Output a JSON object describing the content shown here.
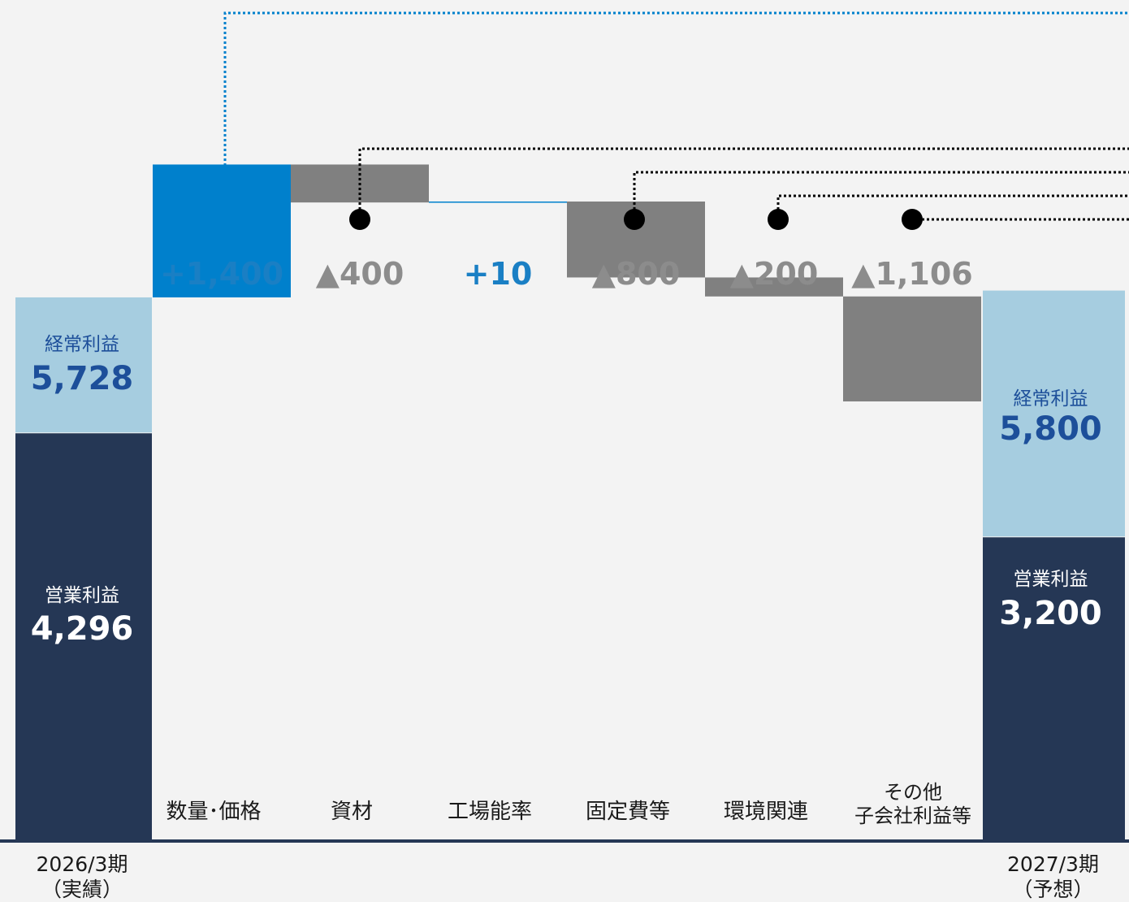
{
  "chart_data": {
    "type": "waterfall",
    "unit": "",
    "start": {
      "period": "2026/3期",
      "sub": "（実績）",
      "operating_label": "営業利益",
      "operating": 4296,
      "operating_text": "4,296",
      "ordinary_label": "経常利益",
      "ordinary": 5728,
      "ordinary_text": "5,728"
    },
    "steps": [
      {
        "category": "数量･価格",
        "value": 1400,
        "label": "+1,400",
        "pointer": "blue"
      },
      {
        "category": "資材",
        "value": -400,
        "label": "▲400",
        "pointer": "black"
      },
      {
        "category": "工場能率",
        "value": 10,
        "label": "+10",
        "pointer": ""
      },
      {
        "category": "固定費等",
        "value": -800,
        "label": "▲800",
        "pointer": "black"
      },
      {
        "category": "環境関連",
        "value": -200,
        "label": "▲200",
        "pointer": "black"
      },
      {
        "category": "その他\n子会社利益等",
        "value": -1106,
        "label": "▲1,106",
        "pointer": "black"
      }
    ],
    "end": {
      "period": "2027/3期",
      "sub": "（予想）",
      "operating_label": "営業利益",
      "operating": 3200,
      "operating_text": "3,200",
      "ordinary_label": "経常利益",
      "ordinary": 5800,
      "ordinary_text": "5,800"
    },
    "colors": {
      "operating": "#253755",
      "ordinary": "#a6cde0",
      "increase": "#0080cc",
      "decrease": "#808080",
      "increase_text": "#1a7fc4",
      "decrease_text": "#8c8c8c",
      "ordinary_text": "#1d4f9a",
      "background": "#f3f3f3",
      "axis": "#253755"
    }
  }
}
